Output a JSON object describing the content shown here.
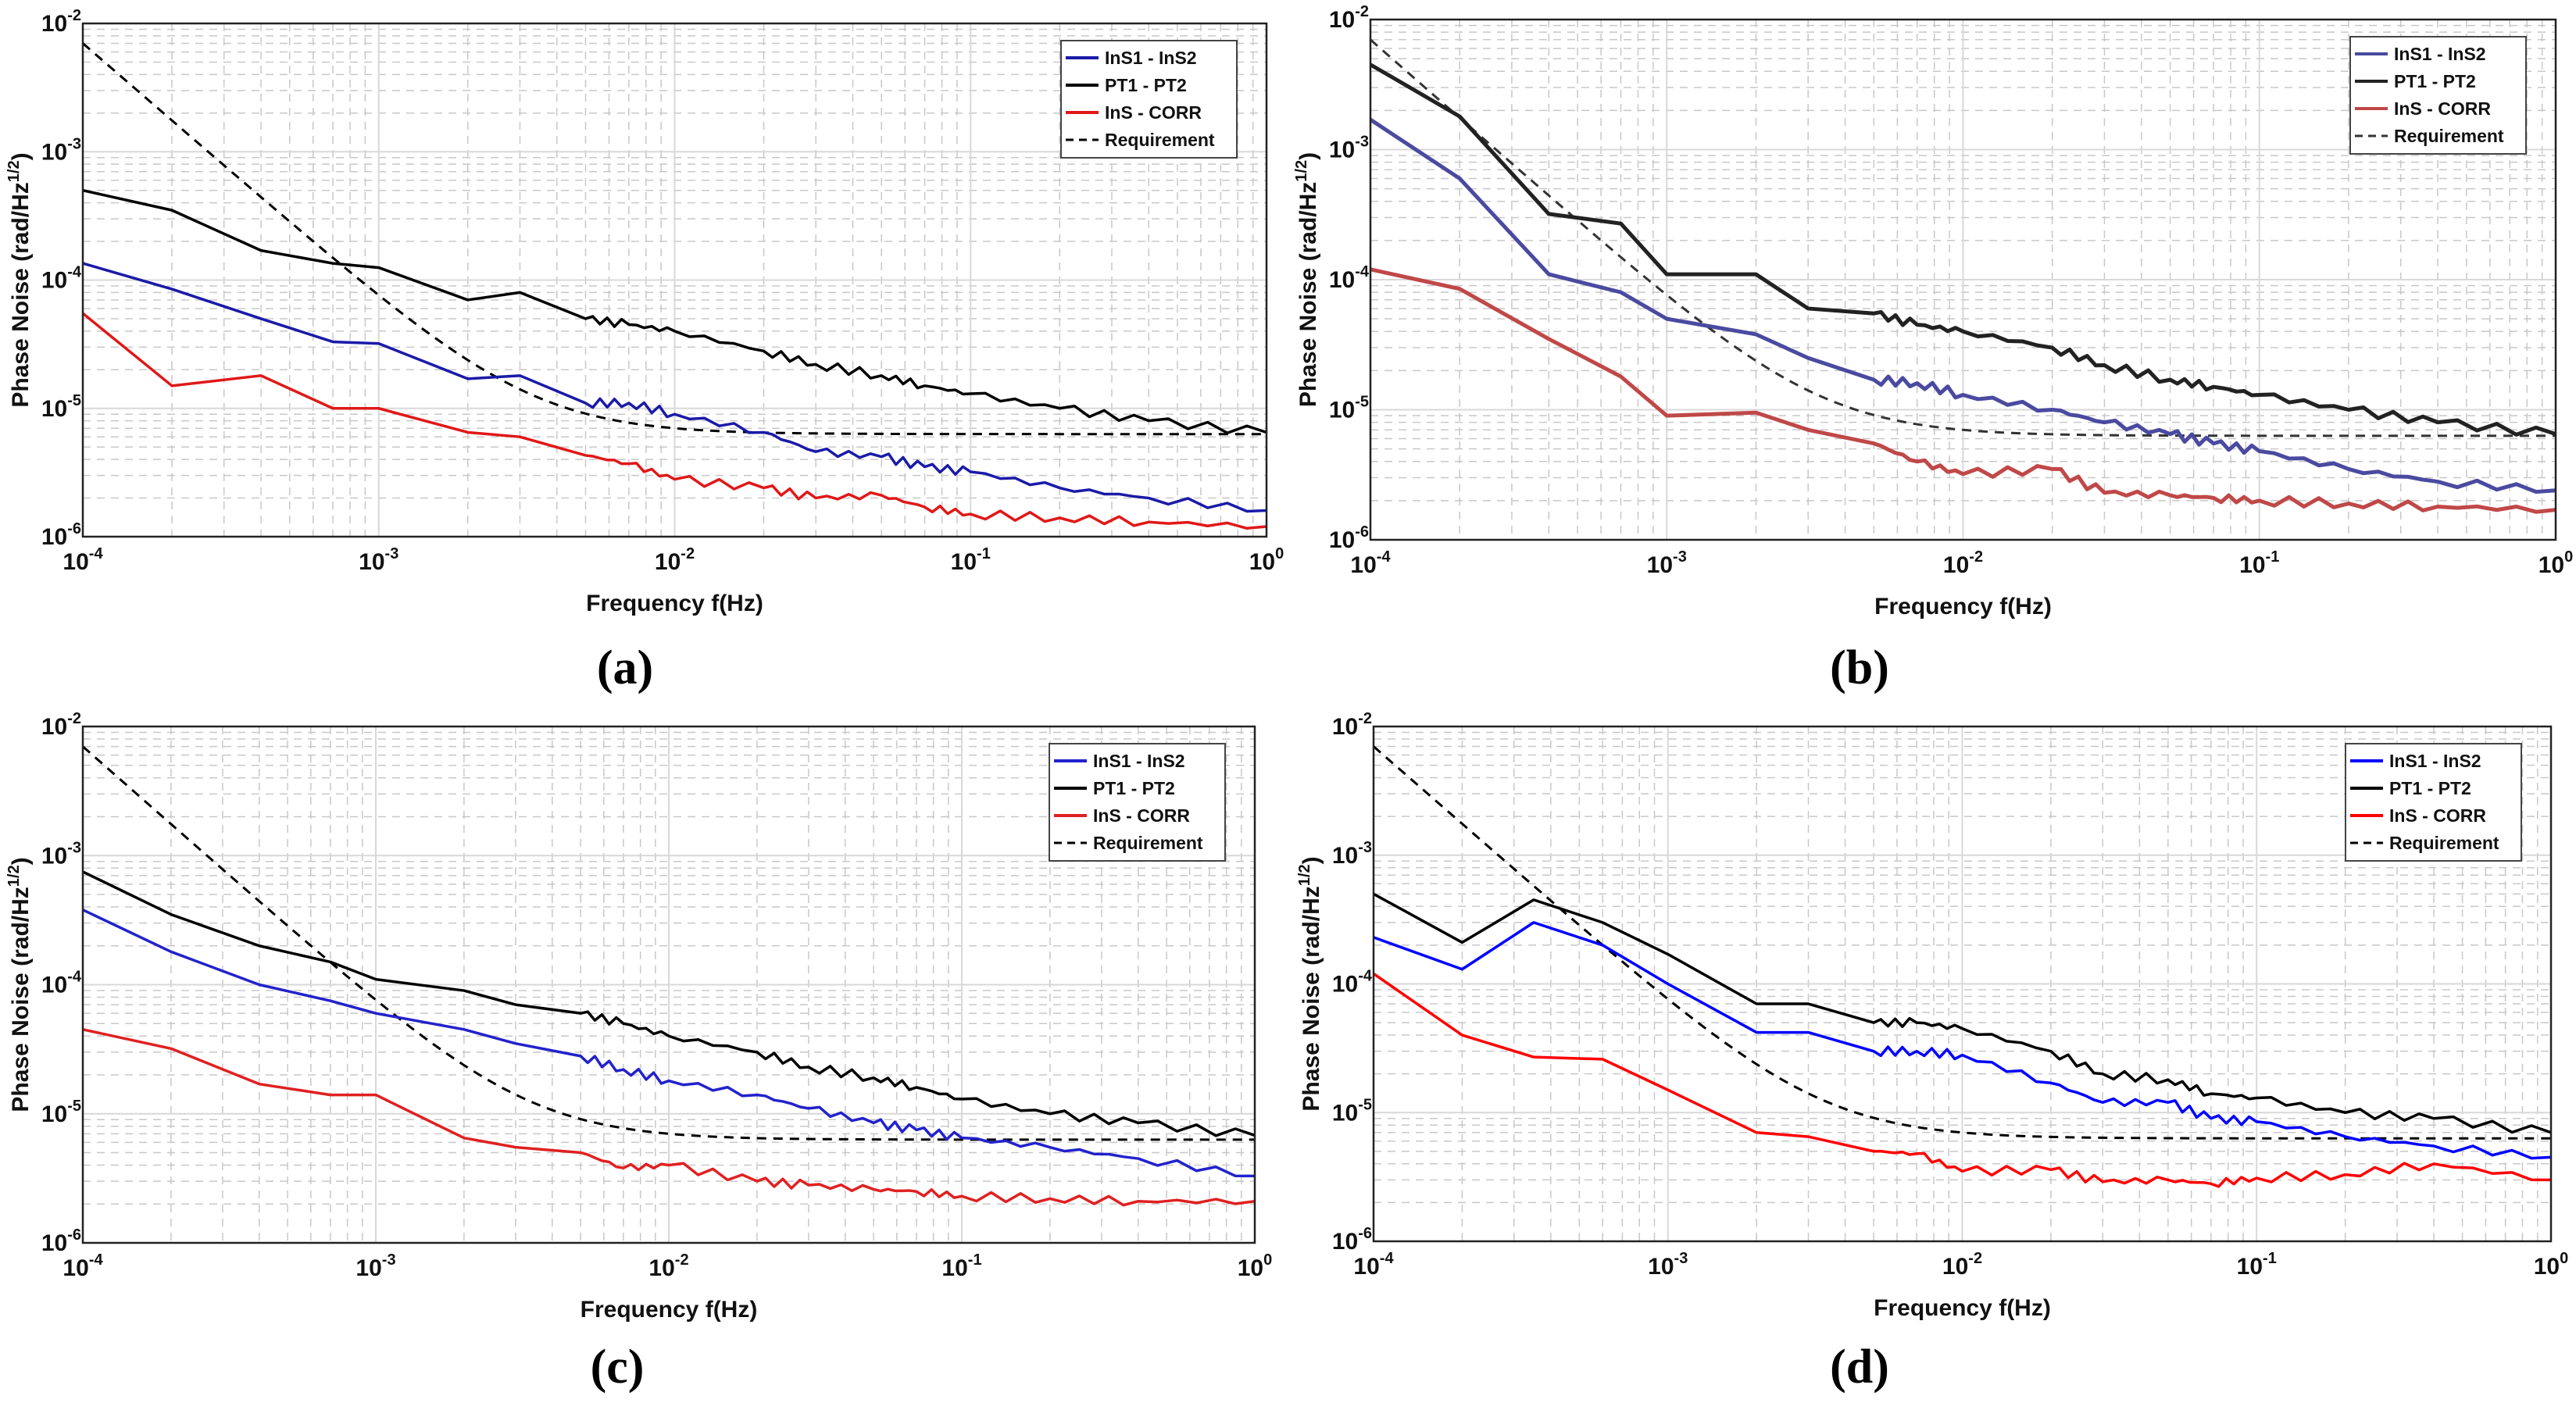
{
  "shared": {
    "xlabel": "Frequency f(Hz)",
    "ylabel_main": "Phase Noise (rad/Hz",
    "ylabel_sup": "1/2",
    "ylabel_close": ")",
    "tick_base": "10",
    "x_tick_exps": [
      "-4",
      "-3",
      "-2",
      "-1",
      "0"
    ],
    "y_tick_exps": [
      "-6",
      "-5",
      "-4",
      "-3",
      "-2"
    ],
    "legend": [
      "InS1 - InS2",
      "PT1 - PT2",
      "InS - CORR",
      "Requirement"
    ]
  },
  "chart_data": [
    {
      "type": "line",
      "caption": "(a)",
      "xlabel": "Frequency f(Hz)",
      "ylabel": "Phase Noise (rad/Hz^1/2)",
      "xscale": "log",
      "yscale": "log",
      "xlim": [
        0.0001,
        1
      ],
      "ylim": [
        1e-06,
        0.01
      ],
      "grid": true,
      "legend_position": "top-right",
      "colors": {
        "InS1 - InS2": "#1a1aa8",
        "PT1 - PT2": "#000000",
        "InS - CORR": "#e01818",
        "Requirement": "#000000"
      },
      "x": [
        0.0001,
        0.0002,
        0.0004,
        0.0007,
        0.001,
        0.002,
        0.003,
        0.005,
        0.007,
        0.01,
        0.02,
        0.03,
        0.05,
        0.07,
        0.1,
        0.2,
        0.4,
        1
      ],
      "series": [
        {
          "name": "InS1 - InS2",
          "values": [
            0.000135,
            8.5e-05,
            5e-05,
            3.3e-05,
            3.2e-05,
            1.7e-05,
            1.8e-05,
            1.1e-05,
            1.1e-05,
            9e-06,
            6.5e-06,
            4.6e-06,
            4.2e-06,
            3.5e-06,
            3.2e-06,
            2.4e-06,
            2e-06,
            1.6e-06
          ]
        },
        {
          "name": "PT1 - PT2",
          "values": [
            0.0005,
            0.00035,
            0.00017,
            0.000135,
            0.000125,
            7e-05,
            8e-05,
            5e-05,
            4.5e-05,
            4e-05,
            2.8e-05,
            2.2e-05,
            1.8e-05,
            1.5e-05,
            1.3e-05,
            1e-05,
            8e-06,
            6.5e-06
          ]
        },
        {
          "name": "InS - CORR",
          "values": [
            5.5e-05,
            1.5e-05,
            1.8e-05,
            1e-05,
            1e-05,
            6.5e-06,
            6e-06,
            4.3e-06,
            3.7e-06,
            2.8e-06,
            2.4e-06,
            2e-06,
            2.1e-06,
            1.7e-06,
            1.5e-06,
            1.4e-06,
            1.3e-06,
            1.2e-06
          ]
        }
      ],
      "requirement": {
        "floor": 6.3e-06,
        "at_1e-4": 0.007,
        "slope": -2
      }
    },
    {
      "type": "line",
      "caption": "(b)",
      "xlabel": "Frequency f(Hz)",
      "ylabel": "Phase Noise (rad/Hz^1/2)",
      "xscale": "log",
      "yscale": "log",
      "xlim": [
        0.0001,
        1
      ],
      "ylim": [
        1e-06,
        0.01
      ],
      "grid": true,
      "legend_position": "top-right",
      "colors": {
        "InS1 - InS2": "#4a4aa0",
        "PT1 - PT2": "#222222",
        "InS - CORR": "#c04848",
        "Requirement": "#333333"
      },
      "x": [
        0.0001,
        0.0002,
        0.0004,
        0.0007,
        0.001,
        0.002,
        0.003,
        0.005,
        0.007,
        0.01,
        0.02,
        0.03,
        0.05,
        0.07,
        0.1,
        0.2,
        0.4,
        1
      ],
      "series": [
        {
          "name": "InS1 - InS2",
          "values": [
            0.0017,
            0.0006,
            0.00011,
            8e-05,
            5e-05,
            3.8e-05,
            2.5e-05,
            1.7e-05,
            1.6e-05,
            1.3e-05,
            1e-05,
            8e-06,
            6.5e-06,
            5.5e-06,
            4.8e-06,
            3.5e-06,
            2.8e-06,
            2.4e-06
          ]
        },
        {
          "name": "PT1 - PT2",
          "values": [
            0.0045,
            0.0018,
            0.00032,
            0.00027,
            0.00011,
            0.00011,
            6e-05,
            5.5e-05,
            4.5e-05,
            4e-05,
            3e-05,
            2.2e-05,
            1.7e-05,
            1.5e-05,
            1.3e-05,
            1e-05,
            8e-06,
            6.5e-06
          ]
        },
        {
          "name": "InS - CORR",
          "values": [
            0.00012,
            8.5e-05,
            3.5e-05,
            1.8e-05,
            9e-06,
            9.5e-06,
            7e-06,
            5.5e-06,
            4e-06,
            3.2e-06,
            3.5e-06,
            2.3e-06,
            2.2e-06,
            2.1e-06,
            2e-06,
            1.9e-06,
            1.8e-06,
            1.7e-06
          ]
        }
      ],
      "requirement": {
        "floor": 6.3e-06,
        "at_1e-4": 0.007,
        "slope": -2
      }
    },
    {
      "type": "line",
      "caption": "(c)",
      "xlabel": "Frequency f(Hz)",
      "ylabel": "Phase Noise (rad/Hz^1/2)",
      "xscale": "log",
      "yscale": "log",
      "xlim": [
        0.0001,
        1
      ],
      "ylim": [
        1e-06,
        0.01
      ],
      "grid": true,
      "legend_position": "top-right",
      "colors": {
        "InS1 - InS2": "#2222cc",
        "PT1 - PT2": "#000000",
        "InS - CORR": "#e02020",
        "Requirement": "#000000"
      },
      "x": [
        0.0001,
        0.0002,
        0.0004,
        0.0007,
        0.001,
        0.002,
        0.003,
        0.005,
        0.007,
        0.01,
        0.02,
        0.03,
        0.05,
        0.07,
        0.1,
        0.2,
        0.4,
        1
      ],
      "series": [
        {
          "name": "InS1 - InS2",
          "values": [
            0.00038,
            0.00018,
            0.0001,
            7.5e-05,
            6e-05,
            4.5e-05,
            3.5e-05,
            2.8e-05,
            2.2e-05,
            1.8e-05,
            1.4e-05,
            1.1e-05,
            8.5e-06,
            7.5e-06,
            6.5e-06,
            5.5e-06,
            4.5e-06,
            3.3e-06
          ]
        },
        {
          "name": "PT1 - PT2",
          "values": [
            0.00075,
            0.00035,
            0.0002,
            0.00015,
            0.00011,
            9e-05,
            7e-05,
            6e-05,
            5e-05,
            4e-05,
            3e-05,
            2.3e-05,
            1.9e-05,
            1.6e-05,
            1.3e-05,
            1e-05,
            8.5e-06,
            6.8e-06
          ]
        },
        {
          "name": "InS - CORR",
          "values": [
            4.5e-05,
            3.2e-05,
            1.7e-05,
            1.4e-05,
            1.4e-05,
            6.5e-06,
            5.5e-06,
            5e-06,
            3.8e-06,
            4e-06,
            3e-06,
            2.8e-06,
            2.6e-06,
            2.5e-06,
            2.3e-06,
            2.2e-06,
            2.1e-06,
            2.1e-06
          ]
        }
      ],
      "requirement": {
        "floor": 6.3e-06,
        "at_1e-4": 0.007,
        "slope": -2
      }
    },
    {
      "type": "line",
      "caption": "(d)",
      "xlabel": "Frequency f(Hz)",
      "ylabel": "Phase Noise (rad/Hz^1/2)",
      "xscale": "log",
      "yscale": "log",
      "xlim": [
        0.0001,
        1
      ],
      "ylim": [
        1e-06,
        0.01
      ],
      "grid": true,
      "legend_position": "top-right",
      "colors": {
        "InS1 - InS2": "#0000ff",
        "PT1 - PT2": "#000000",
        "InS - CORR": "#ff0000",
        "Requirement": "#000000"
      },
      "x": [
        0.0001,
        0.0002,
        0.00035,
        0.0006,
        0.001,
        0.002,
        0.003,
        0.005,
        0.007,
        0.01,
        0.02,
        0.03,
        0.05,
        0.07,
        0.1,
        0.2,
        0.4,
        1
      ],
      "series": [
        {
          "name": "InS1 - InS2",
          "values": [
            0.00023,
            0.00013,
            0.0003,
            0.0002,
            0.0001,
            4.2e-05,
            4.2e-05,
            3e-05,
            3e-05,
            2.8e-05,
            1.7e-05,
            1.2e-05,
            1.2e-05,
            9e-06,
            8.5e-06,
            6.5e-06,
            5.5e-06,
            4.5e-06
          ]
        },
        {
          "name": "PT1 - PT2",
          "values": [
            0.0005,
            0.00021,
            0.00045,
            0.0003,
            0.00017,
            7e-05,
            7e-05,
            5e-05,
            5e-05,
            4.5e-05,
            3e-05,
            2e-05,
            1.8e-05,
            1.4e-05,
            1.3e-05,
            1e-05,
            9e-06,
            7e-06
          ]
        },
        {
          "name": "InS - CORR",
          "values": [
            0.00012,
            4e-05,
            2.7e-05,
            2.6e-05,
            1.5e-05,
            7e-06,
            6.5e-06,
            5e-06,
            4.8e-06,
            3.5e-06,
            3.6e-06,
            2.9e-06,
            3e-06,
            2.8e-06,
            3.1e-06,
            3.3e-06,
            4e-06,
            3e-06
          ]
        }
      ],
      "requirement": {
        "floor": 6.3e-06,
        "at_1e-4": 0.007,
        "slope": -2
      }
    }
  ]
}
